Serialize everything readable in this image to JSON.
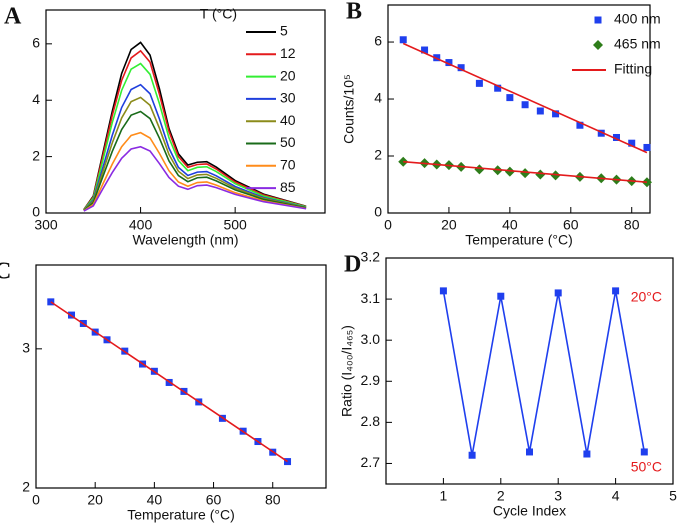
{
  "chart_data": [
    {
      "type": "line",
      "label": "A",
      "xlabel": "Wavelength (nm)",
      "xlim": [
        300,
        595
      ],
      "ylim": [
        0,
        7.2
      ],
      "xticks": [
        300,
        400,
        500
      ],
      "yticks": [
        0,
        2,
        4,
        6
      ],
      "legend_title": "T (°C)",
      "x": [
        340,
        350,
        360,
        370,
        380,
        390,
        400,
        410,
        420,
        430,
        440,
        450,
        460,
        470,
        480,
        500,
        530,
        575
      ],
      "series": [
        {
          "name": "5",
          "color": "#000000",
          "values": [
            0.12,
            0.6,
            2.1,
            3.6,
            4.95,
            5.8,
            6.05,
            5.6,
            4.4,
            3.0,
            2.1,
            1.7,
            1.8,
            1.82,
            1.63,
            1.15,
            0.67,
            0.24
          ]
        },
        {
          "name": "12",
          "color": "#e41a1c",
          "values": [
            0.12,
            0.57,
            2.0,
            3.45,
            4.7,
            5.5,
            5.75,
            5.35,
            4.2,
            2.9,
            2.0,
            1.62,
            1.72,
            1.74,
            1.56,
            1.1,
            0.64,
            0.23
          ]
        },
        {
          "name": "20",
          "color": "#33ee33",
          "values": [
            0.11,
            0.53,
            1.85,
            3.2,
            4.35,
            5.1,
            5.3,
            4.92,
            3.87,
            2.67,
            1.86,
            1.5,
            1.62,
            1.64,
            1.47,
            1.04,
            0.6,
            0.22
          ]
        },
        {
          "name": "30",
          "color": "#1f3fdd",
          "values": [
            0.1,
            0.46,
            1.6,
            2.75,
            3.74,
            4.38,
            4.55,
            4.23,
            3.33,
            2.3,
            1.62,
            1.33,
            1.45,
            1.47,
            1.32,
            0.94,
            0.55,
            0.2
          ]
        },
        {
          "name": "40",
          "color": "#8b8b1a",
          "values": [
            0.1,
            0.42,
            1.45,
            2.48,
            3.37,
            3.95,
            4.1,
            3.82,
            3.0,
            2.08,
            1.48,
            1.22,
            1.35,
            1.37,
            1.23,
            0.88,
            0.52,
            0.19
          ]
        },
        {
          "name": "50",
          "color": "#1a6b1a",
          "values": [
            0.09,
            0.37,
            1.28,
            2.18,
            2.96,
            3.47,
            3.6,
            3.35,
            2.65,
            1.85,
            1.33,
            1.11,
            1.25,
            1.27,
            1.14,
            0.82,
            0.48,
            0.18
          ]
        },
        {
          "name": "70",
          "color": "#ff8c1a",
          "values": [
            0.08,
            0.3,
            1.02,
            1.73,
            2.35,
            2.75,
            2.85,
            2.66,
            2.11,
            1.5,
            1.1,
            0.95,
            1.08,
            1.1,
            0.99,
            0.72,
            0.43,
            0.16
          ]
        },
        {
          "name": "85",
          "color": "#8a2be2",
          "values": [
            0.07,
            0.25,
            0.85,
            1.43,
            1.94,
            2.27,
            2.35,
            2.2,
            1.75,
            1.26,
            0.95,
            0.84,
            0.97,
            0.99,
            0.9,
            0.66,
            0.4,
            0.15
          ]
        }
      ]
    },
    {
      "type": "scatter",
      "label": "B",
      "xlabel": "Temperature (°C)",
      "ylabel": "Counts/10⁵",
      "xlim": [
        0,
        86
      ],
      "ylim": [
        0,
        7.3
      ],
      "xticks": [
        0,
        20,
        40,
        60,
        80
      ],
      "yticks": [
        0,
        2,
        4,
        6
      ],
      "x": [
        5,
        12,
        16,
        20,
        24,
        30,
        36,
        40,
        45,
        50,
        55,
        63,
        70,
        75,
        80,
        85
      ],
      "series": [
        {
          "name": "400 nm",
          "color": "#1f3fee",
          "marker": "square",
          "values": [
            6.08,
            5.72,
            5.45,
            5.28,
            5.1,
            4.55,
            4.38,
            4.05,
            3.8,
            3.58,
            3.48,
            3.08,
            2.8,
            2.65,
            2.45,
            2.3
          ]
        },
        {
          "name": "465 nm",
          "color": "#2e7d1a",
          "marker": "diamond",
          "values": [
            1.8,
            1.75,
            1.7,
            1.68,
            1.62,
            1.53,
            1.5,
            1.45,
            1.4,
            1.35,
            1.32,
            1.27,
            1.22,
            1.17,
            1.12,
            1.08
          ]
        },
        {
          "name": "Fitting",
          "color": "#e41a1c",
          "segments": [
            {
              "x": [
                5,
                85
              ],
              "values": [
                5.95,
                2.12
              ]
            },
            {
              "x": [
                5,
                85
              ],
              "values": [
                1.8,
                1.08
              ]
            }
          ]
        }
      ]
    },
    {
      "type": "scatter",
      "label": "C",
      "xlabel": "Temperature (°C)",
      "log_y": true,
      "xlim": [
        0,
        98
      ],
      "ylim": [
        2,
        3.83
      ],
      "xticks": [
        0,
        20,
        40,
        60,
        80
      ],
      "yticks": [
        2,
        3
      ],
      "x": [
        5,
        12,
        16,
        20,
        24,
        30,
        36,
        40,
        45,
        50,
        55,
        63,
        70,
        75,
        80,
        85
      ],
      "series": [
        {
          "color": "#1f3fee",
          "marker": "square",
          "values": [
            3.44,
            3.31,
            3.23,
            3.15,
            3.08,
            2.98,
            2.87,
            2.81,
            2.72,
            2.65,
            2.57,
            2.45,
            2.36,
            2.29,
            2.22,
            2.16
          ]
        },
        {
          "color": "#e41a1c",
          "x": [
            5,
            85
          ],
          "values": [
            3.44,
            2.16
          ]
        }
      ]
    },
    {
      "type": "line",
      "label": "D",
      "xlabel": "Cycle Index",
      "ylabel": "Ratio (I₄₀₀/I₄₆₅)",
      "xlim": [
        0,
        5
      ],
      "ylim": [
        2.65,
        3.2
      ],
      "xticks": [
        1,
        2,
        3,
        4,
        5
      ],
      "yticks": [
        2.7,
        2.8,
        2.9,
        {
          "value": 3,
          "label": "3.0"
        },
        3.1,
        3.2
      ],
      "annotations": [
        "20°C",
        "50°C"
      ],
      "annotation_color": "#e41a1c",
      "x": [
        1,
        1.5,
        2,
        2.5,
        3,
        3.5,
        4,
        4.5
      ],
      "series": [
        {
          "color": "#1f3fee",
          "marker": "square",
          "values": [
            3.12,
            2.72,
            3.107,
            2.728,
            3.115,
            2.723,
            3.12,
            2.728
          ]
        }
      ]
    }
  ]
}
